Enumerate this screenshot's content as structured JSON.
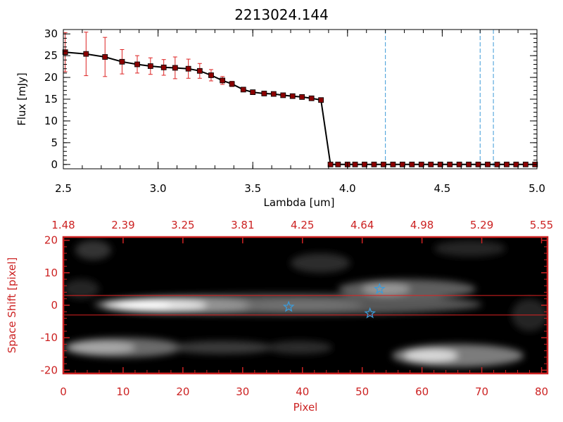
{
  "chart_data": [
    {
      "type": "line",
      "title": "2213024.144",
      "xlabel": "Lambda [um]",
      "ylabel": "Flux [mJy]",
      "xlim": [
        2.5,
        5.0
      ],
      "ylim": [
        -1,
        31
      ],
      "xticks": [
        "2.5",
        "3.0",
        "3.5",
        "4.0",
        "4.5",
        "5.0"
      ],
      "yticks": [
        "0",
        "5",
        "10",
        "15",
        "20",
        "25",
        "30"
      ],
      "grid": false,
      "series": [
        {
          "x": [
            2.51,
            2.62,
            2.72,
            2.81,
            2.89,
            2.96,
            3.03,
            3.09,
            3.16,
            3.22,
            3.28,
            3.34,
            3.39,
            3.45,
            3.5,
            3.56,
            3.61,
            3.66,
            3.71,
            3.76,
            3.81,
            3.86,
            3.91,
            3.95,
            4.0,
            4.04,
            4.09,
            4.14,
            4.19,
            4.24,
            4.29,
            4.34,
            4.39,
            4.44,
            4.49,
            4.54,
            4.59,
            4.64,
            4.69,
            4.74,
            4.79,
            4.84,
            4.89,
            4.94,
            4.99
          ],
          "y": [
            25.8,
            25.4,
            24.7,
            23.6,
            23.0,
            22.6,
            22.3,
            22.2,
            22.0,
            21.5,
            20.5,
            19.3,
            18.5,
            17.2,
            16.6,
            16.3,
            16.2,
            15.9,
            15.7,
            15.5,
            15.2,
            14.8,
            0,
            0,
            0,
            0,
            0,
            0,
            0,
            0,
            0,
            0,
            0,
            0,
            0,
            0,
            0,
            0,
            0,
            0,
            0,
            0,
            0,
            0,
            0
          ],
          "yerr": [
            4.5,
            5.0,
            4.5,
            2.8,
            2.0,
            1.9,
            1.8,
            2.5,
            2.2,
            1.7,
            1.3,
            0.9,
            0.6,
            0.5,
            0.5,
            0.4,
            0.4,
            0.4,
            0.4,
            0.4,
            0.4,
            0.5,
            0,
            0,
            0,
            0,
            0,
            0,
            0,
            0,
            0,
            0,
            0,
            0,
            0,
            0,
            0,
            0,
            0,
            0,
            0,
            0,
            0,
            0,
            0
          ]
        }
      ],
      "vlines": [
        4.2,
        4.7,
        4.77
      ],
      "colors": {
        "line": "#000000",
        "marker": "#8b0000",
        "errorbar": "#dd2222",
        "vline": "#3c9ad8",
        "zero_line": "#dd2222"
      }
    },
    {
      "type": "heatmap",
      "xlabel": "Pixel",
      "ylabel": "Space Shift [pixel]",
      "xlim": [
        0,
        81
      ],
      "ylim": [
        -21,
        21
      ],
      "xticks": [
        "0",
        "10",
        "20",
        "30",
        "40",
        "50",
        "60",
        "70",
        "80"
      ],
      "yticks": [
        "-20",
        "-10",
        "0",
        "10",
        "20"
      ],
      "top_axis_ticks": [
        "1.48",
        "2.39",
        "3.25",
        "3.81",
        "4.25",
        "4.64",
        "4.98",
        "5.29",
        "5.55"
      ],
      "extraction_band": [
        -3,
        3
      ],
      "stars": [
        {
          "x": 37.7,
          "y": -0.5
        },
        {
          "x": 51.3,
          "y": -2.5
        },
        {
          "x": 52.9,
          "y": 5.0
        }
      ],
      "colors": {
        "axes": "#cc2222",
        "band": "#dd2222",
        "star": "#3c9ad8",
        "background": "#000000"
      }
    }
  ]
}
